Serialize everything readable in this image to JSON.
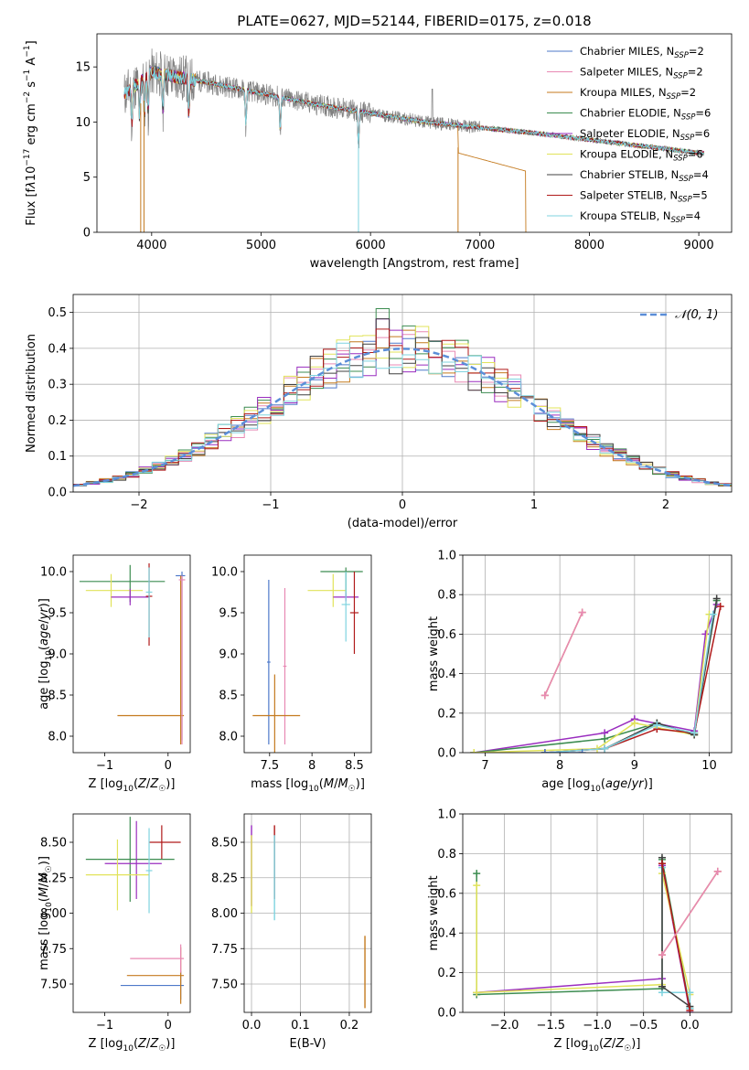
{
  "chart_data": [
    {
      "type": "line",
      "title": "PLATE=0627, MJD=52144, FIBERID=0175, z=0.018",
      "xlabel": "wavelength [Angstrom, rest frame]",
      "ylabel_html": "Flux [f<tspan font-style='italic'>λ</tspan>10<tspan dy='-6' font-size='9'>−17</tspan><tspan dy='6'> erg cm</tspan><tspan dy='-6' font-size='9'>−2</tspan><tspan dy='6'> s</tspan><tspan dy='-6' font-size='9'>−1</tspan><tspan dy='6'> A</tspan><tspan dy='-6' font-size='9'>−1</tspan><tspan dy='6'>]</tspan>",
      "xlim": [
        3500,
        9300
      ],
      "ylim": [
        0,
        18
      ],
      "xticks": [
        4000,
        5000,
        6000,
        7000,
        8000,
        9000
      ],
      "yticks": [
        0,
        5,
        10,
        15
      ],
      "data_color": "#808080",
      "legend_position": "top-right",
      "series": [
        {
          "name": "Chabrier MILES, N",
          "sub": "SSP",
          "suffix": "=2",
          "color": "#4e79c9"
        },
        {
          "name": "Salpeter MILES, N",
          "sub": "SSP",
          "suffix": "=2",
          "color": "#e889b4"
        },
        {
          "name": "Kroupa MILES, N",
          "sub": "SSP",
          "suffix": "=2",
          "color": "#c47a1e"
        },
        {
          "name": "Chabrier ELODIE, N",
          "sub": "SSP",
          "suffix": "=6",
          "color": "#3c8c50"
        },
        {
          "name": "Salpeter ELODIE, N",
          "sub": "SSP",
          "suffix": "=6",
          "color": "#9a2dbf"
        },
        {
          "name": "Kroupa ELODIE, N",
          "sub": "SSP",
          "suffix": "=6",
          "color": "#e1e35a"
        },
        {
          "name": "Chabrier STELIB, N",
          "sub": "SSP",
          "suffix": "=4",
          "color": "#404040"
        },
        {
          "name": "Salpeter STELIB, N",
          "sub": "SSP",
          "suffix": "=5",
          "color": "#b01a1a"
        },
        {
          "name": "Kroupa STELIB, N",
          "sub": "SSP",
          "suffix": "=4",
          "color": "#7fd3df"
        }
      ],
      "model_anchor": {
        "x": [
          3750,
          4000,
          4500,
          5000,
          5500,
          6000,
          6500,
          7000,
          7500,
          8000,
          8500,
          9000
        ],
        "y": [
          12.5,
          14.5,
          13.6,
          12.6,
          11.6,
          10.8,
          10.0,
          9.5,
          9.0,
          8.4,
          7.8,
          7.2
        ]
      }
    },
    {
      "type": "line",
      "xlabel": "(data-model)/error",
      "ylabel": "Normed distribution",
      "xlim": [
        -2.5,
        2.5
      ],
      "ylim": [
        0,
        0.55
      ],
      "xticks": [
        -2,
        -1,
        0,
        1,
        2
      ],
      "yticks": [
        0.0,
        0.1,
        0.2,
        0.3,
        0.4,
        0.5
      ],
      "grid": true,
      "legend_position": "top-right",
      "gauss_label": "𝒩(0, 1)",
      "gauss_color": "#5b8ed8",
      "bin_width": 0.1
    },
    {
      "type": "scatter",
      "xlabel": "Z [log10(Z/Z☉)]",
      "ylabel": "age  [log10(age/yr)]",
      "xlim": [
        -1.5,
        0.35
      ],
      "ylim": [
        7.8,
        10.2
      ],
      "xticks": [
        -1,
        0
      ],
      "yticks": [
        8.0,
        8.5,
        9.0,
        9.5,
        10.0
      ],
      "crosses": [
        {
          "color": "#4e79c9",
          "x": 0.22,
          "xerr": [
            0.1,
            0.05
          ],
          "y": 9.95,
          "yerr": [
            2.0,
            0.05
          ]
        },
        {
          "color": "#3c8c50",
          "x": -0.6,
          "xerr": [
            0.8,
            0.55
          ],
          "y": 9.88,
          "yerr": [
            0.25,
            0.2
          ]
        },
        {
          "color": "#e1e35a",
          "x": -0.9,
          "xerr": [
            0.4,
            0.5
          ],
          "y": 9.77,
          "yerr": [
            0.2,
            0.2
          ]
        },
        {
          "color": "#9a2dbf",
          "x": -0.6,
          "xerr": [
            0.3,
            0.3
          ],
          "y": 9.69,
          "yerr": [
            0.1,
            0.1
          ]
        },
        {
          "color": "#b01a1a",
          "x": -0.3,
          "xerr": [
            0.05,
            0.05
          ],
          "y": 9.7,
          "yerr": [
            0.6,
            0.4
          ]
        },
        {
          "color": "#7fd3df",
          "x": -0.3,
          "xerr": [
            0.05,
            0.05
          ],
          "y": 9.75,
          "yerr": [
            0.55,
            0.3
          ]
        },
        {
          "color": "#c47a1e",
          "x": 0.2,
          "xerr": [
            1.0,
            0.05
          ],
          "y": 8.25,
          "yerr": [
            0.35,
            1.7
          ]
        },
        {
          "color": "#e889b4",
          "x": 0.22,
          "xerr": [
            0.05,
            0.05
          ],
          "y": 9.9,
          "yerr": [
            2.0,
            0.05
          ]
        }
      ]
    },
    {
      "type": "scatter",
      "xlabel": "mass [log10(M/M☉)]",
      "ylabel": "",
      "xlim": [
        7.2,
        8.7
      ],
      "ylim": [
        7.8,
        10.2
      ],
      "xticks": [
        7.5,
        8.0,
        8.5
      ],
      "yticks": [
        8.0,
        8.5,
        9.0,
        9.5,
        10.0
      ],
      "crosses": [
        {
          "color": "#4e79c9",
          "x": 7.49,
          "xerr": [
            0.02,
            0.02
          ],
          "y": 8.9,
          "yerr": [
            1.0,
            1.0
          ]
        },
        {
          "color": "#e889b4",
          "x": 7.68,
          "xerr": [
            0.02,
            0.02
          ],
          "y": 8.85,
          "yerr": [
            0.95,
            0.95
          ]
        },
        {
          "color": "#c47a1e",
          "x": 7.56,
          "xerr": [
            0.26,
            0.3
          ],
          "y": 8.25,
          "yerr": [
            0.45,
            0.5
          ]
        },
        {
          "color": "#3c8c50",
          "x": 8.4,
          "xerr": [
            0.3,
            0.2
          ],
          "y": 10.0,
          "yerr": [
            0.3,
            0.05
          ]
        },
        {
          "color": "#e1e35a",
          "x": 8.25,
          "xerr": [
            0.3,
            0.15
          ],
          "y": 9.77,
          "yerr": [
            0.2,
            0.2
          ]
        },
        {
          "color": "#9a2dbf",
          "x": 8.4,
          "xerr": [
            0.15,
            0.15
          ],
          "y": 9.69,
          "yerr": [
            0.05,
            0.05
          ]
        },
        {
          "color": "#b01a1a",
          "x": 8.5,
          "xerr": [
            0.05,
            0.05
          ],
          "y": 9.5,
          "yerr": [
            0.5,
            0.5
          ]
        },
        {
          "color": "#7fd3df",
          "x": 8.4,
          "xerr": [
            0.05,
            0.05
          ],
          "y": 9.6,
          "yerr": [
            0.45,
            0.4
          ]
        }
      ]
    },
    {
      "type": "line",
      "xlabel": "age  [log10(age/yr)]",
      "ylabel": "mass weight",
      "xlim": [
        6.7,
        10.3
      ],
      "ylim": [
        0,
        1
      ],
      "xticks": [
        7,
        8,
        9,
        10
      ],
      "yticks": [
        0.0,
        0.2,
        0.4,
        0.6,
        0.8,
        1.0
      ],
      "grid": true,
      "series": [
        {
          "color": "#9a2dbf",
          "x": [
            6.85,
            8.6,
            9.0,
            9.8,
            9.95,
            10.1
          ],
          "y": [
            0.0,
            0.1,
            0.17,
            0.11,
            0.6,
            0.75
          ]
        },
        {
          "color": "#3c8c50",
          "x": [
            6.85,
            8.6,
            9.3,
            9.8,
            10.1
          ],
          "y": [
            0.0,
            0.07,
            0.15,
            0.09,
            0.77
          ]
        },
        {
          "color": "#e1e35a",
          "x": [
            6.85,
            8.5,
            9.0,
            9.8,
            10.0
          ],
          "y": [
            0.0,
            0.02,
            0.15,
            0.09,
            0.7
          ]
        },
        {
          "color": "#404040",
          "x": [
            7.8,
            8.6,
            9.3,
            9.8,
            10.1
          ],
          "y": [
            0.0,
            0.02,
            0.15,
            0.09,
            0.78
          ]
        },
        {
          "color": "#b01a1a",
          "x": [
            7.8,
            8.6,
            9.3,
            9.8,
            10.15
          ],
          "y": [
            0.0,
            0.02,
            0.12,
            0.1,
            0.74
          ]
        },
        {
          "color": "#7fd3df",
          "x": [
            7.8,
            8.6,
            9.3,
            9.8,
            10.05
          ],
          "y": [
            0.0,
            0.02,
            0.14,
            0.1,
            0.7
          ]
        },
        {
          "color": "#c47a1e",
          "x": [
            7.8,
            8.3
          ],
          "y": [
            0.29,
            0.71
          ]
        },
        {
          "color": "#e889b4",
          "x": [
            7.8,
            8.3
          ],
          "y": [
            0.29,
            0.71
          ]
        },
        {
          "color": "#4e79c9",
          "x": [
            7.8,
            8.3
          ],
          "y": [
            0.0,
            0.0
          ]
        }
      ]
    },
    {
      "type": "scatter",
      "xlabel": "Z [log10(Z/Z☉)]",
      "ylabel": "mass [log10(M/M☉)]",
      "xlim": [
        -1.5,
        0.35
      ],
      "ylim": [
        7.3,
        8.7
      ],
      "xticks": [
        -1,
        0
      ],
      "yticks": [
        7.5,
        7.75,
        8.0,
        8.25,
        8.5
      ],
      "crosses": [
        {
          "color": "#4e79c9",
          "x": 0.2,
          "xerr": [
            0.95,
            0.05
          ],
          "y": 7.49,
          "yerr": [
            0.1,
            0.1
          ]
        },
        {
          "color": "#c47a1e",
          "x": 0.2,
          "xerr": [
            0.85,
            0.05
          ],
          "y": 7.56,
          "yerr": [
            0.2,
            0.2
          ]
        },
        {
          "color": "#e889b4",
          "x": 0.2,
          "xerr": [
            0.8,
            0.05
          ],
          "y": 7.68,
          "yerr": [
            0.1,
            0.1
          ]
        },
        {
          "color": "#b01a1a",
          "x": -0.1,
          "xerr": [
            0.2,
            0.3
          ],
          "y": 8.5,
          "yerr": [
            0.12,
            0.12
          ]
        },
        {
          "color": "#3c8c50",
          "x": -0.6,
          "xerr": [
            0.7,
            0.7
          ],
          "y": 8.38,
          "yerr": [
            0.3,
            0.3
          ]
        },
        {
          "color": "#9a2dbf",
          "x": -0.5,
          "xerr": [
            0.5,
            0.4
          ],
          "y": 8.35,
          "yerr": [
            0.25,
            0.3
          ]
        },
        {
          "color": "#e1e35a",
          "x": -0.8,
          "xerr": [
            0.5,
            0.5
          ],
          "y": 8.27,
          "yerr": [
            0.25,
            0.25
          ]
        },
        {
          "color": "#7fd3df",
          "x": -0.3,
          "xerr": [
            0.05,
            0.05
          ],
          "y": 8.3,
          "yerr": [
            0.3,
            0.3
          ]
        }
      ]
    },
    {
      "type": "scatter",
      "xlabel": "E(B-V)",
      "ylabel": "",
      "xlim": [
        -0.015,
        0.245
      ],
      "ylim": [
        7.3,
        8.7
      ],
      "xticks": [
        0.0,
        0.1,
        0.2
      ],
      "yticks": [
        7.5,
        7.75,
        8.0,
        8.25,
        8.5
      ],
      "grid": true,
      "vlines": [
        {
          "color": "#9a2dbf",
          "x": 0.0,
          "y": [
            8.05,
            8.62
          ]
        },
        {
          "color": "#e1e35a",
          "x": 0.0,
          "y": [
            8.0,
            8.55
          ]
        },
        {
          "color": "#b01a1a",
          "x": 0.047,
          "y": [
            8.1,
            8.62
          ]
        },
        {
          "color": "#7fd3df",
          "x": 0.047,
          "y": [
            7.95,
            8.55
          ]
        },
        {
          "color": "#c47a1e",
          "x": 0.232,
          "y": [
            7.33,
            7.84
          ]
        }
      ]
    },
    {
      "type": "line",
      "xlabel": "Z [log10(Z/Z☉)]",
      "ylabel": "mass weight",
      "xlim": [
        -2.45,
        0.45
      ],
      "ylim": [
        0,
        1
      ],
      "xticks": [
        -2.0,
        -1.5,
        -1.0,
        -0.5,
        0.0
      ],
      "yticks": [
        0.0,
        0.2,
        0.4,
        0.6,
        0.8,
        1.0
      ],
      "grid": true,
      "series": [
        {
          "color": "#3c8c50",
          "x": [
            -2.3,
            -2.3,
            -0.3,
            -0.3,
            0.0
          ],
          "y": [
            0.7,
            0.09,
            0.12,
            0.77,
            0.02
          ]
        },
        {
          "color": "#9a2dbf",
          "x": [
            -2.3,
            -0.3,
            -0.3,
            0.0
          ],
          "y": [
            0.1,
            0.17,
            0.74,
            0.0
          ]
        },
        {
          "color": "#e1e35a",
          "x": [
            -2.3,
            -2.3,
            -0.3,
            -0.3,
            0.0
          ],
          "y": [
            0.64,
            0.1,
            0.14,
            0.7,
            0.09
          ]
        },
        {
          "color": "#7fd3df",
          "x": [
            -0.3,
            -0.3,
            0.0,
            0.0
          ],
          "y": [
            0.73,
            0.1,
            0.1,
            0.02
          ]
        },
        {
          "color": "#404040",
          "x": [
            -0.3,
            -0.3,
            0.0
          ],
          "y": [
            0.78,
            0.13,
            0.03
          ]
        },
        {
          "color": "#b01a1a",
          "x": [
            -0.3,
            0.0
          ],
          "y": [
            0.75,
            0.01
          ]
        },
        {
          "color": "#c47a1e",
          "x": [
            -0.3,
            0.3
          ],
          "y": [
            0.29,
            0.71
          ]
        },
        {
          "color": "#e889b4",
          "x": [
            -0.3,
            0.3
          ],
          "y": [
            0.29,
            0.71
          ]
        }
      ]
    }
  ]
}
